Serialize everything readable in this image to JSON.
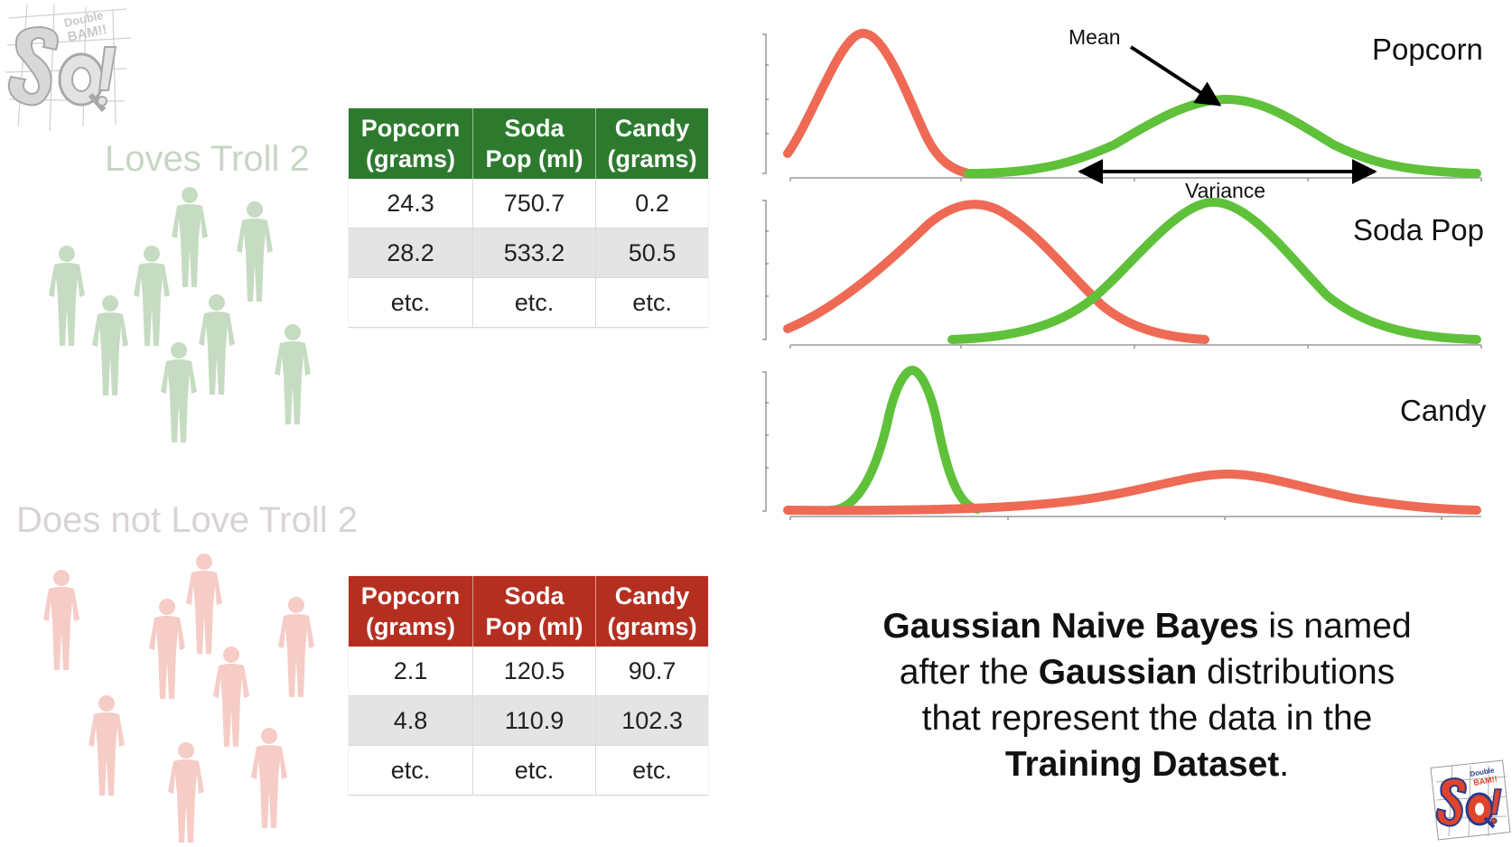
{
  "groups": {
    "loves": "Loves Troll 2",
    "not_loves": "Does not Love Troll 2"
  },
  "tables": {
    "headers": [
      {
        "line1": "Popcorn",
        "line2": "(grams)"
      },
      {
        "line1": "Soda",
        "line2": "Pop (ml)"
      },
      {
        "line1": "Candy",
        "line2": "(grams)"
      }
    ],
    "loves_rows": [
      [
        "24.3",
        "750.7",
        "0.2"
      ],
      [
        "28.2",
        "533.2",
        "50.5"
      ],
      [
        "etc.",
        "etc.",
        "etc."
      ]
    ],
    "not_loves_rows": [
      [
        "2.1",
        "120.5",
        "90.7"
      ],
      [
        "4.8",
        "110.9",
        "102.3"
      ],
      [
        "etc.",
        "etc.",
        "etc."
      ]
    ]
  },
  "charts": {
    "popcorn_title": "Popcorn",
    "soda_title": "Soda Pop",
    "candy_title": "Candy",
    "mean_label": "Mean",
    "variance_label": "Variance"
  },
  "caption": {
    "p1_bold": "Gaussian Naive Bayes",
    "p2": " is named after the ",
    "p3_bold": "Gaussian",
    "p4": " distributions that represent the data in the ",
    "p5_bold": "Training Dataset",
    "p6": "."
  },
  "colors": {
    "loves": "#5fc13a",
    "not_loves": "#ee6a55",
    "green_header": "#2d7a2f",
    "red_header": "#b52f21"
  }
}
